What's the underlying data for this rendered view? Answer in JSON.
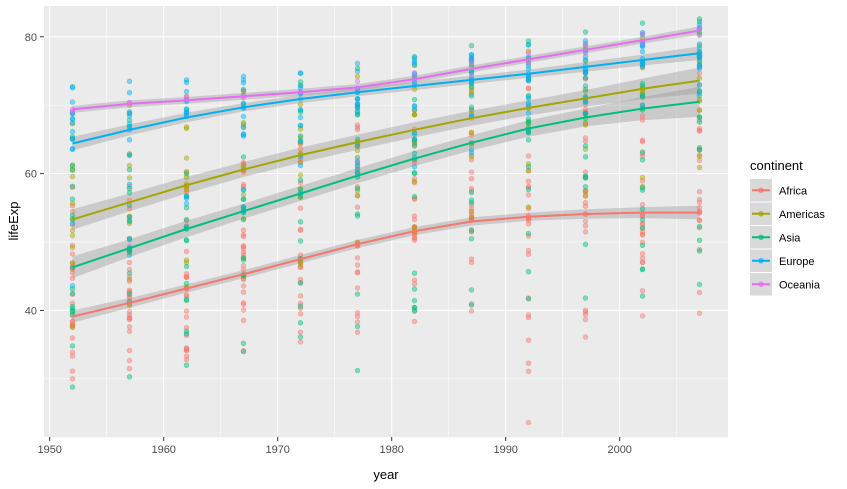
{
  "chart_data": {
    "type": "scatter",
    "x_label": "year",
    "y_label": "lifeExp",
    "xlim": [
      1949.5,
      2009.5
    ],
    "ylim": [
      21.5,
      84.5
    ],
    "x_ticks": [
      1950,
      1960,
      1970,
      1980,
      1990,
      2000
    ],
    "y_ticks": [
      40,
      60,
      80
    ],
    "survey_years": [
      1952,
      1957,
      1962,
      1967,
      1972,
      1977,
      1982,
      1987,
      1992,
      1997,
      2002,
      2007
    ],
    "legend_title": "continent",
    "series": [
      {
        "name": "Africa",
        "color": "#F8766D",
        "point_ranges": [
          [
            30.0,
            58.0
          ],
          [
            31.5,
            58.1
          ],
          [
            32.8,
            60.2
          ],
          [
            34.1,
            61.6
          ],
          [
            35.4,
            64.3
          ],
          [
            36.8,
            67.1
          ],
          [
            38.4,
            69.3
          ],
          [
            39.9,
            71.9
          ],
          [
            23.6,
            73.6
          ],
          [
            36.1,
            74.8
          ],
          [
            39.2,
            75.7
          ],
          [
            39.6,
            76.4
          ]
        ],
        "trend": [
          39.1,
          41.1,
          43.2,
          45.3,
          47.5,
          49.7,
          51.6,
          53.0,
          53.7,
          54.1,
          54.3,
          54.3
        ],
        "band": [
          0.9,
          0.7,
          0.6,
          0.6,
          0.6,
          0.6,
          0.6,
          0.6,
          0.6,
          0.7,
          0.8,
          1.0
        ]
      },
      {
        "name": "Americas",
        "color": "#A3A500",
        "point_ranges": [
          [
            37.6,
            68.8
          ],
          [
            40.7,
            70.0
          ],
          [
            43.4,
            71.3
          ],
          [
            45.0,
            72.1
          ],
          [
            46.7,
            72.9
          ],
          [
            49.9,
            74.2
          ],
          [
            51.5,
            75.8
          ],
          [
            53.6,
            76.9
          ],
          [
            55.1,
            77.9
          ],
          [
            56.7,
            78.6
          ],
          [
            58.1,
            79.8
          ],
          [
            60.9,
            80.7
          ]
        ],
        "trend": [
          53.3,
          55.8,
          58.3,
          60.6,
          62.7,
          64.6,
          66.4,
          68.1,
          69.6,
          71.0,
          72.4,
          73.6
        ],
        "band": [
          1.5,
          1.3,
          1.2,
          1.1,
          1.1,
          1.1,
          1.1,
          1.1,
          1.1,
          1.2,
          1.5,
          1.9
        ]
      },
      {
        "name": "Asia",
        "color": "#00BF7D",
        "point_ranges": [
          [
            28.8,
            65.4
          ],
          [
            30.3,
            67.8
          ],
          [
            32.0,
            69.4
          ],
          [
            34.0,
            71.4
          ],
          [
            36.1,
            73.4
          ],
          [
            31.2,
            75.4
          ],
          [
            39.9,
            77.1
          ],
          [
            40.8,
            78.7
          ],
          [
            41.7,
            79.4
          ],
          [
            41.8,
            80.7
          ],
          [
            42.1,
            82.0
          ],
          [
            43.8,
            82.6
          ]
        ],
        "trend": [
          46.3,
          49.1,
          51.9,
          54.5,
          57.1,
          59.7,
          62.2,
          64.5,
          66.6,
          68.2,
          69.5,
          70.5
        ],
        "band": [
          1.6,
          1.3,
          1.2,
          1.1,
          1.1,
          1.1,
          1.1,
          1.1,
          1.2,
          1.3,
          1.7,
          2.2
        ]
      },
      {
        "name": "Europe",
        "color": "#00B0F6",
        "point_ranges": [
          [
            43.6,
            72.7
          ],
          [
            48.1,
            73.5
          ],
          [
            52.1,
            73.7
          ],
          [
            54.3,
            74.2
          ],
          [
            57.0,
            74.7
          ],
          [
            59.5,
            76.1
          ],
          [
            61.0,
            76.9
          ],
          [
            63.1,
            77.4
          ],
          [
            66.1,
            78.8
          ],
          [
            68.8,
            79.4
          ],
          [
            70.0,
            80.6
          ],
          [
            71.8,
            81.8
          ]
        ],
        "trend": [
          64.4,
          66.4,
          68.2,
          69.7,
          70.9,
          71.9,
          72.8,
          73.7,
          74.6,
          75.6,
          76.6,
          77.6
        ],
        "band": [
          1.0,
          0.8,
          0.7,
          0.6,
          0.6,
          0.6,
          0.6,
          0.6,
          0.6,
          0.7,
          0.8,
          1.0
        ]
      },
      {
        "name": "Oceania",
        "color": "#E76BF3",
        "point_ranges": [
          [
            69.1,
            69.4
          ],
          [
            70.3,
            70.4
          ],
          [
            70.9,
            71.2
          ],
          [
            71.1,
            71.5
          ],
          [
            71.9,
            71.9
          ],
          [
            72.2,
            73.5
          ],
          [
            73.8,
            74.7
          ],
          [
            74.3,
            76.3
          ],
          [
            76.3,
            77.6
          ],
          [
            77.6,
            78.8
          ],
          [
            79.1,
            80.4
          ],
          [
            80.2,
            81.2
          ]
        ],
        "trend": [
          69.4,
          70.2,
          70.7,
          71.3,
          71.9,
          72.6,
          73.8,
          75.3,
          76.7,
          78.1,
          79.5,
          80.9
        ],
        "band": [
          0.5,
          0.5,
          0.5,
          0.5,
          0.5,
          0.5,
          0.5,
          0.5,
          0.5,
          0.5,
          0.5,
          0.6
        ]
      }
    ]
  }
}
